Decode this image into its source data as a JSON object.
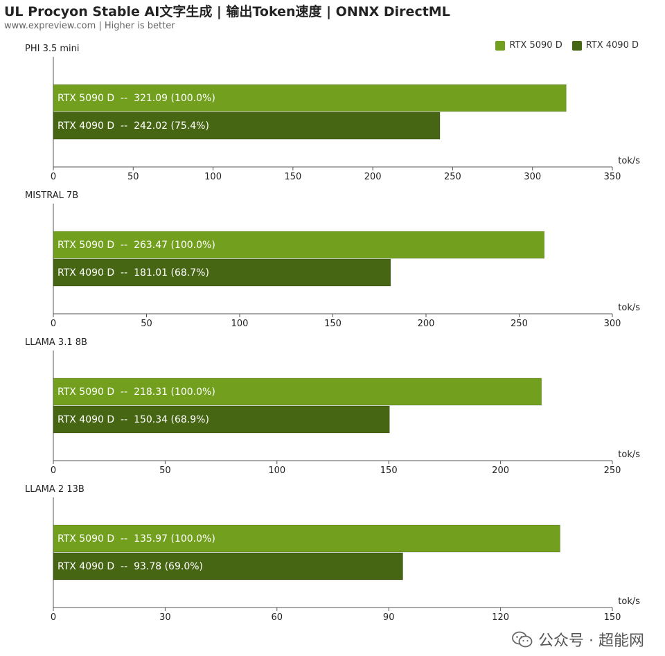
{
  "header": {
    "title": "UL Procyon Stable AI文字生成 | 输出Token速度 | ONNX DirectML",
    "subtitle": "www.expreview.com | Higher is better"
  },
  "legend": [
    {
      "name": "RTX 5090 D",
      "color": "#72a01e"
    },
    {
      "name": "RTX 4090 D",
      "color": "#476614"
    }
  ],
  "watermark": {
    "text": "公众号 · 超能网"
  },
  "chart_data": [
    {
      "type": "bar",
      "orientation": "horizontal",
      "title": "PHI 3.5 mini",
      "xlabel": "tok/s",
      "xlim": [
        0,
        350
      ],
      "ticks": [
        0,
        50,
        100,
        150,
        200,
        250,
        300,
        350
      ],
      "series": [
        {
          "name": "RTX 5090 D",
          "value": 321.09,
          "label": "RTX 5090 D  --  321.09 (100.0%)"
        },
        {
          "name": "RTX 4090 D",
          "value": 242.02,
          "label": "RTX 4090 D  --  242.02 (75.4%)"
        }
      ]
    },
    {
      "type": "bar",
      "orientation": "horizontal",
      "title": "MISTRAL 7B",
      "xlabel": "tok/s",
      "xlim": [
        0,
        300
      ],
      "ticks": [
        0,
        50,
        100,
        150,
        200,
        250,
        300
      ],
      "series": [
        {
          "name": "RTX 5090 D",
          "value": 263.47,
          "label": "RTX 5090 D  --  263.47 (100.0%)"
        },
        {
          "name": "RTX 4090 D",
          "value": 181.01,
          "label": "RTX 4090 D  --  181.01 (68.7%)"
        }
      ]
    },
    {
      "type": "bar",
      "orientation": "horizontal",
      "title": "LLAMA 3.1 8B",
      "xlabel": "tok/s",
      "xlim": [
        0,
        250
      ],
      "ticks": [
        0,
        50,
        100,
        150,
        200,
        250
      ],
      "series": [
        {
          "name": "RTX 5090 D",
          "value": 218.31,
          "label": "RTX 5090 D  --  218.31 (100.0%)"
        },
        {
          "name": "RTX 4090 D",
          "value": 150.34,
          "label": "RTX 4090 D  --  150.34 (68.9%)"
        }
      ]
    },
    {
      "type": "bar",
      "orientation": "horizontal",
      "title": "LLAMA 2 13B",
      "xlabel": "tok/s",
      "xlim": [
        0,
        150
      ],
      "ticks": [
        0,
        30,
        60,
        90,
        120,
        150
      ],
      "series": [
        {
          "name": "RTX 5090 D",
          "value": 135.97,
          "label": "RTX 5090 D  --  135.97 (100.0%)"
        },
        {
          "name": "RTX 4090 D",
          "value": 93.78,
          "label": "RTX 4090 D  --  93.78 (69.0%)"
        }
      ]
    }
  ]
}
